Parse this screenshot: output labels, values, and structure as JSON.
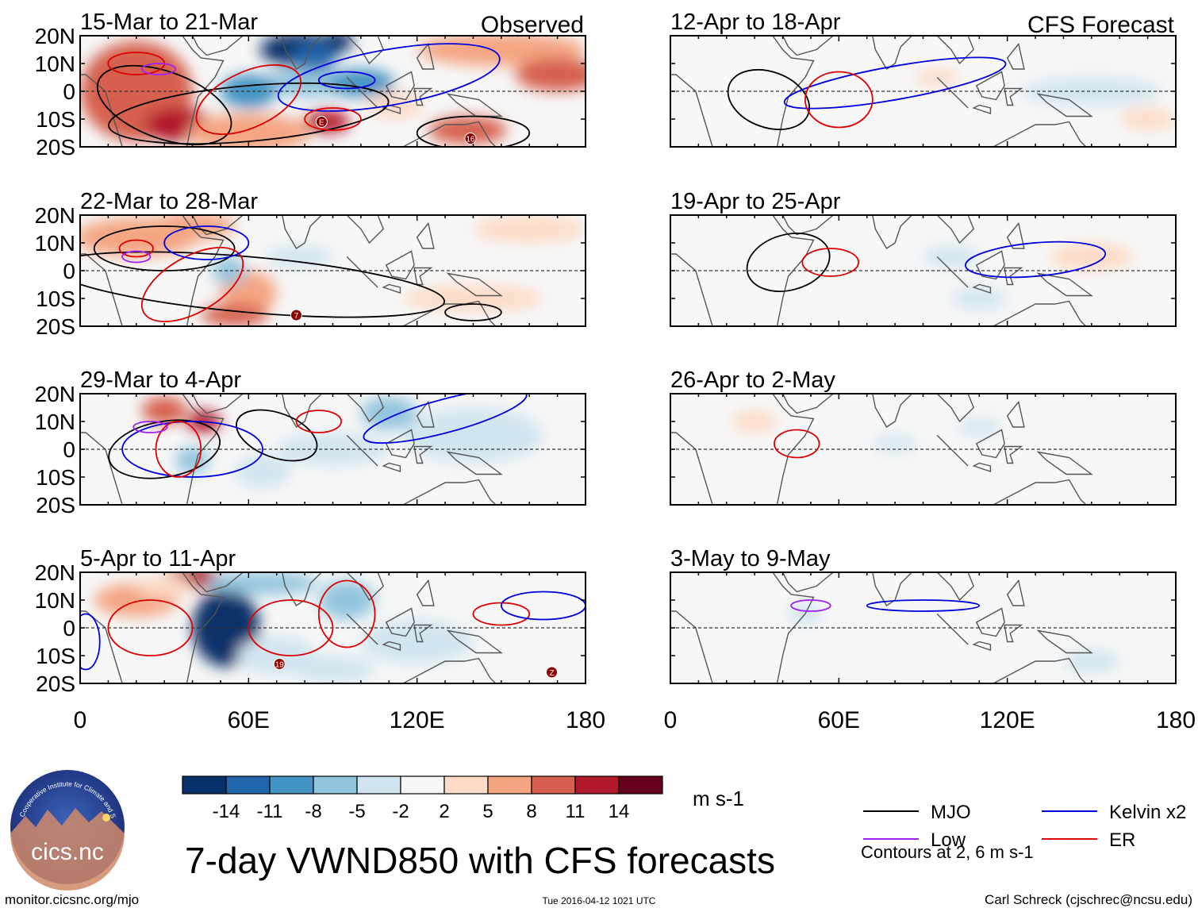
{
  "figure": {
    "title": "7-day VWND850 with CFS forecasts",
    "footer_left": "monitor.cicsnc.org/mjo",
    "footer_center": "Tue 2016-04-12 1021 UTC",
    "footer_right": "Carl Schreck (cjschrec@ncsu.edu)",
    "logo_text": "cics.nc",
    "logo_arc_text": "Cooperative Institute for Climate and Satellites"
  },
  "chart_data": {
    "type": "heatmap",
    "variable": "VWND850",
    "title": "7-day VWND850 with CFS forecasts",
    "units": "m s-1",
    "x_ticks": [
      "0",
      "60E",
      "120E",
      "180"
    ],
    "x_tick_values": [
      0,
      60,
      120,
      180
    ],
    "y_ticks": [
      "20N",
      "10N",
      "0",
      "10S",
      "20S"
    ],
    "y_tick_values": [
      20,
      10,
      0,
      -10,
      -20
    ],
    "xlim": [
      0,
      180
    ],
    "ylim": [
      -20,
      20
    ],
    "columns": [
      {
        "label": "Observed",
        "panels": [
          "15-Mar to 21-Mar",
          "22-Mar to 28-Mar",
          "29-Mar to 4-Apr",
          "5-Apr to 11-Apr"
        ]
      },
      {
        "label": "CFS Forecast",
        "panels": [
          "12-Apr to 18-Apr",
          "19-Apr to 25-Apr",
          "26-Apr to 2-May",
          "3-May to 9-May"
        ]
      }
    ],
    "colorbar": {
      "labels": [
        "-14",
        "-11",
        "-8",
        "-5",
        "-2",
        "2",
        "5",
        "8",
        "11",
        "14"
      ],
      "colors": [
        "#08306b",
        "#2166ac",
        "#4393c3",
        "#92c5de",
        "#d1e5f0",
        "#f7f7f7",
        "#fddbc7",
        "#f4a582",
        "#d6604d",
        "#b2182b",
        "#67001f"
      ]
    },
    "legend": {
      "entries": [
        {
          "name": "MJO",
          "color": "#000000"
        },
        {
          "name": "Kelvin x2",
          "color": "#0000dd"
        },
        {
          "name": "Low",
          "color": "#a020f0"
        },
        {
          "name": "ER",
          "color": "#dd0000"
        }
      ],
      "note": "Contours at 2, 6 m s-1"
    },
    "storm_labels": [
      {
        "panel": "15-Mar to 21-Mar",
        "label": "E",
        "lon": 86,
        "lat": -11
      },
      {
        "panel": "15-Mar to 21-Mar",
        "label": "16",
        "lon": 139,
        "lat": -17
      },
      {
        "panel": "22-Mar to 28-Mar",
        "label": "7",
        "lon": 77,
        "lat": -16
      },
      {
        "panel": "5-Apr to 11-Apr",
        "label": "19",
        "lon": 71,
        "lat": -13
      },
      {
        "panel": "5-Apr to 11-Apr",
        "label": "Z",
        "lon": 168,
        "lat": -16
      }
    ]
  }
}
